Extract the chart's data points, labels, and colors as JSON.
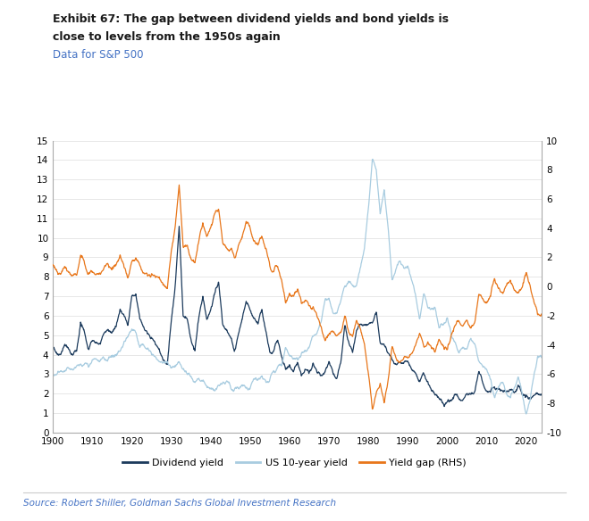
{
  "title_line1": "Exhibit 67: The gap between dividend yields and bond yields is",
  "title_line2": "close to levels from the 1950s again",
  "title_sub": "Data for S&P 500",
  "source": "Source: Robert Shiller, Goldman Sachs Global Investment Research",
  "legend_labels": [
    "Dividend yield",
    "US 10-year yield",
    "Yield gap (RHS)"
  ],
  "line_colors": [
    "#1b3a5c",
    "#a8cce0",
    "#e8761a"
  ],
  "ylim_left": [
    0,
    15
  ],
  "ylim_right": [
    -10,
    10
  ],
  "yticks_left": [
    0,
    1,
    2,
    3,
    4,
    5,
    6,
    7,
    8,
    9,
    10,
    11,
    12,
    13,
    14,
    15
  ],
  "yticks_right": [
    -10,
    -8,
    -6,
    -4,
    -2,
    0,
    2,
    4,
    6,
    8,
    10
  ],
  "xlim": [
    1900,
    2024
  ],
  "xticks": [
    1900,
    1910,
    1920,
    1930,
    1940,
    1950,
    1960,
    1970,
    1980,
    1990,
    2000,
    2010,
    2020
  ],
  "background_color": "#ffffff",
  "grid_color": "#dddddd",
  "title_color": "#1a1a1a",
  "subtitle_color": "#4472c4",
  "source_color": "#4472c4"
}
